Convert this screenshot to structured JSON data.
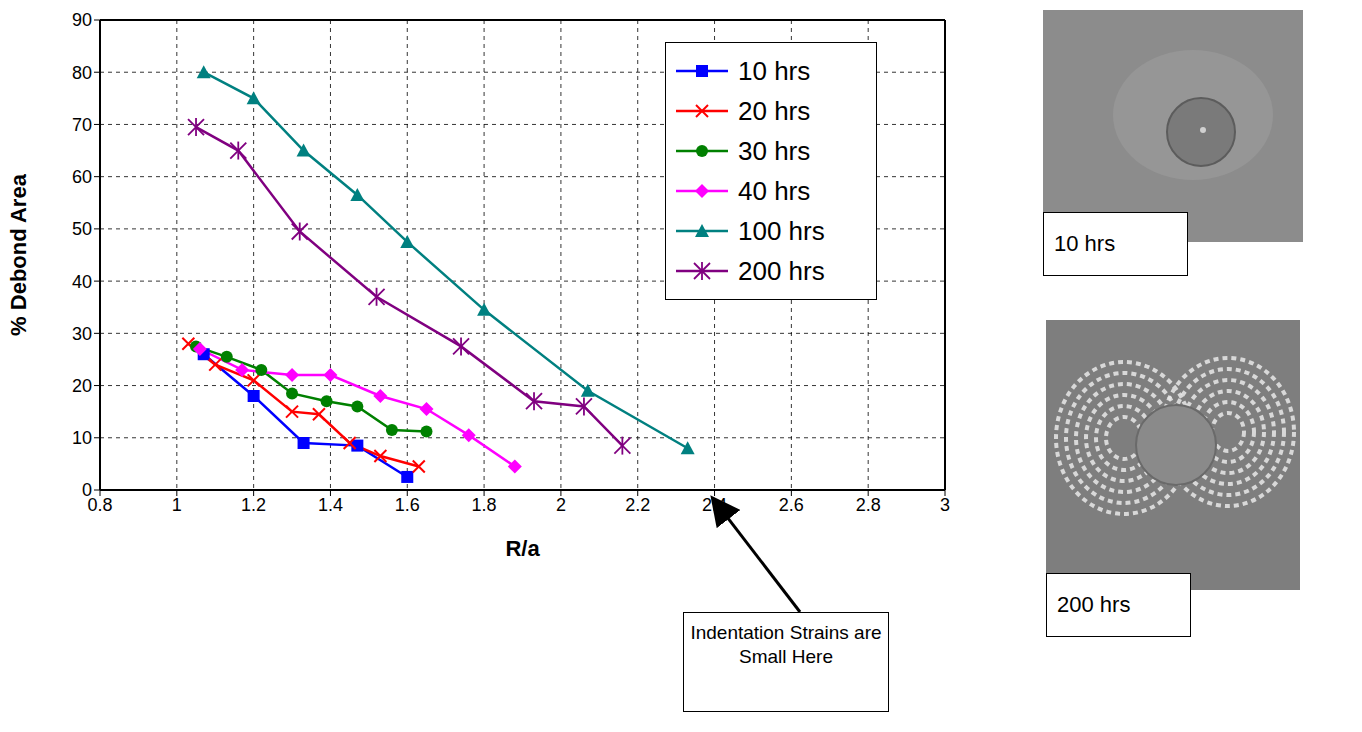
{
  "chart_data": {
    "type": "line",
    "x_label": "R/a",
    "y_label": "% Debond Area",
    "xlim": [
      0.8,
      3
    ],
    "xticks": [
      0.8,
      1,
      1.2,
      1.4,
      1.6,
      1.8,
      2,
      2.2,
      2.4,
      2.6,
      2.8,
      3
    ],
    "ylim": [
      0,
      90
    ],
    "yticks": [
      0,
      10,
      20,
      30,
      40,
      50,
      60,
      70,
      80,
      90
    ],
    "grid": true,
    "legend": "upper right",
    "series": [
      {
        "name": "10 hrs",
        "color": "#0000ff",
        "marker": "square",
        "x": [
          1.07,
          1.2,
          1.33,
          1.47,
          1.6
        ],
        "values": [
          26,
          18,
          9,
          8.5,
          2.5
        ]
      },
      {
        "name": "20 hrs",
        "color": "#ff0000",
        "marker": "x",
        "x": [
          1.03,
          1.1,
          1.2,
          1.3,
          1.37,
          1.45,
          1.53,
          1.63
        ],
        "values": [
          28,
          24,
          21,
          15,
          14.5,
          9,
          6.5,
          4.5
        ]
      },
      {
        "name": "30 hrs",
        "color": "#008000",
        "marker": "circle",
        "x": [
          1.05,
          1.13,
          1.22,
          1.3,
          1.39,
          1.47,
          1.56,
          1.65
        ],
        "values": [
          27.5,
          25.5,
          23,
          18.5,
          17,
          16,
          11.5,
          11.2
        ]
      },
      {
        "name": "40 hrs",
        "color": "#ff00ff",
        "marker": "diamond",
        "x": [
          1.06,
          1.17,
          1.3,
          1.4,
          1.53,
          1.65,
          1.76,
          1.88
        ],
        "values": [
          27,
          23,
          22,
          22,
          18,
          15.5,
          10.5,
          4.5
        ]
      },
      {
        "name": "100 hrs",
        "color": "#008080",
        "marker": "triangle",
        "x": [
          1.07,
          1.2,
          1.33,
          1.47,
          1.6,
          1.8,
          2.07,
          2.33
        ],
        "values": [
          80,
          75,
          65,
          56.5,
          47.5,
          34.5,
          19,
          8
        ]
      },
      {
        "name": "200 hrs",
        "color": "#800080",
        "marker": "star",
        "x": [
          1.05,
          1.16,
          1.32,
          1.52,
          1.74,
          1.93,
          2.06,
          2.16
        ],
        "values": [
          69.5,
          65,
          49.5,
          37,
          27.5,
          17,
          16,
          8.5
        ]
      }
    ],
    "annotations": [
      {
        "text": "Indentation Strains are Small Here"
      }
    ]
  },
  "images": [
    {
      "label": "10 hrs"
    },
    {
      "label": "200 hrs"
    }
  ]
}
